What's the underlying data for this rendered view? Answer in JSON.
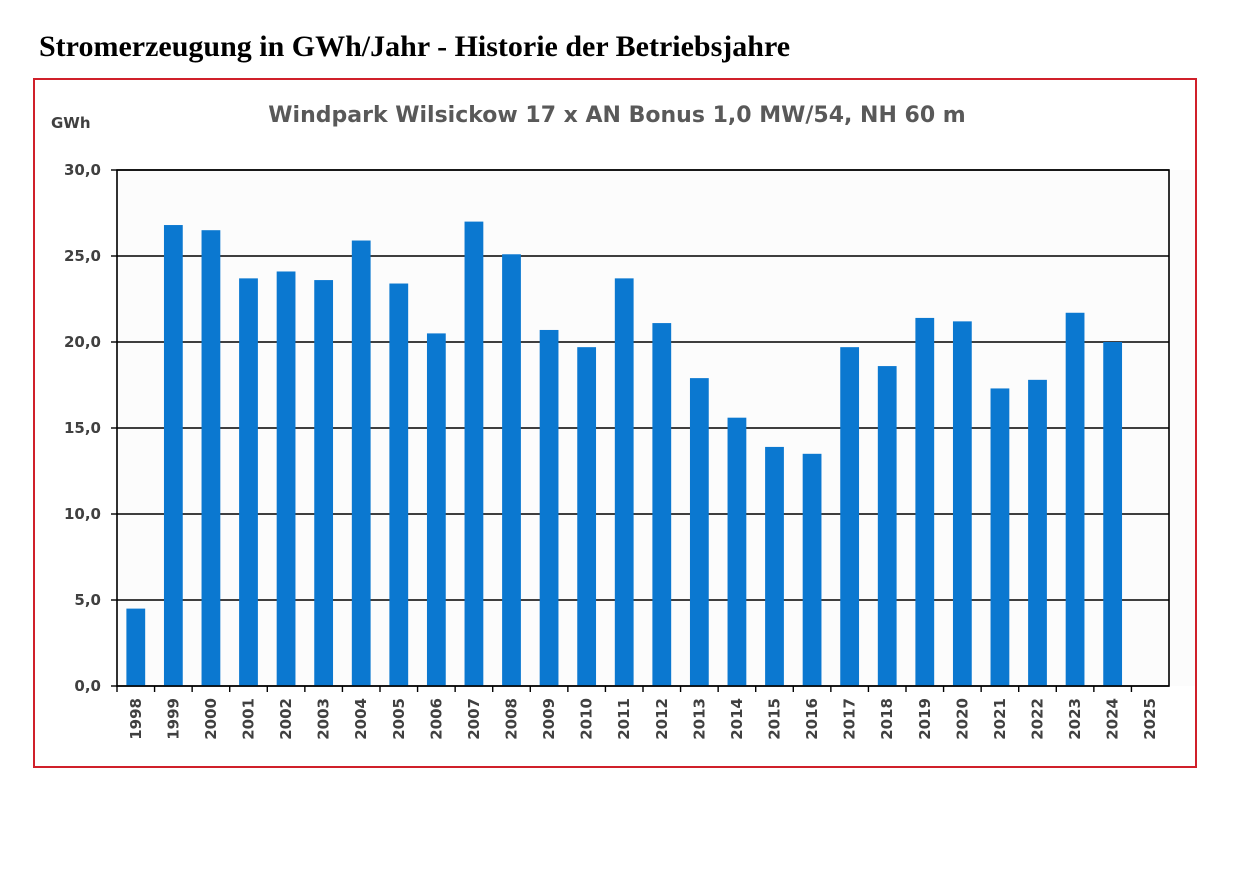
{
  "page_heading": "Stromerzeugung in GWh/Jahr - Historie der Betriebsjahre",
  "chart_data": {
    "type": "bar",
    "title": "Windpark Wilsickow  17 x AN Bonus 1,0 MW/54, NH 60 m",
    "ylabel": "GWh",
    "xlabel": "",
    "ylim": [
      0,
      30
    ],
    "yticks": [
      "0,0",
      "5,0",
      "10,0",
      "15,0",
      "20,0",
      "25,0",
      "30,0"
    ],
    "grid": true,
    "bar_color": "#0b78d0",
    "categories": [
      "1998",
      "1999",
      "2000",
      "2001",
      "2002",
      "2003",
      "2004",
      "2005",
      "2006",
      "2007",
      "2008",
      "2009",
      "2010",
      "2011",
      "2012",
      "2013",
      "2014",
      "2015",
      "2016",
      "2017",
      "2018",
      "2019",
      "2020",
      "2021",
      "2022",
      "2023",
      "2024",
      "2025"
    ],
    "values": [
      4.5,
      26.8,
      26.5,
      23.7,
      24.1,
      23.6,
      25.9,
      23.4,
      20.5,
      27.0,
      25.1,
      20.7,
      19.7,
      23.7,
      21.1,
      17.9,
      15.6,
      13.9,
      13.5,
      19.7,
      18.6,
      21.4,
      21.2,
      17.3,
      17.8,
      21.7,
      20.0,
      null
    ]
  }
}
